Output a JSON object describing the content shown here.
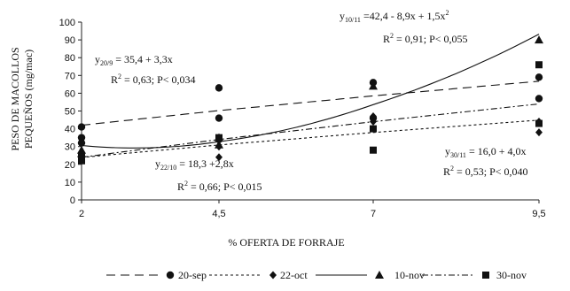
{
  "chart_data": {
    "type": "scatter",
    "xlabel": "% OFERTA DE FORRAJE",
    "ylabel_lines": [
      "PESO DE MACOLLOS",
      "PEQUEÑOS (mg/mac)"
    ],
    "x_ticks": [
      "2",
      "4,5",
      "7",
      "9,5"
    ],
    "x_values": [
      2,
      4.5,
      7,
      9.5
    ],
    "xlim": [
      2,
      9.5
    ],
    "ylim": [
      0,
      100
    ],
    "y_ticks": [
      0,
      10,
      20,
      30,
      40,
      50,
      60,
      70,
      80,
      90,
      100
    ],
    "grid": false,
    "legend_position": "bottom",
    "series": [
      {
        "name": "20-sep",
        "marker": "circle",
        "line_style": "dashed",
        "points": [
          {
            "x": 2,
            "y": 41
          },
          {
            "x": 2,
            "y": 35
          },
          {
            "x": 2,
            "y": 32
          },
          {
            "x": 4.5,
            "y": 63
          },
          {
            "x": 4.5,
            "y": 46
          },
          {
            "x": 4.5,
            "y": 34
          },
          {
            "x": 7,
            "y": 66
          },
          {
            "x": 7,
            "y": 46
          },
          {
            "x": 9.5,
            "y": 69
          },
          {
            "x": 9.5,
            "y": 57
          }
        ],
        "fit": {
          "type": "linear",
          "intercept": 35.4,
          "slope": 3.3
        }
      },
      {
        "name": "22-oct",
        "marker": "diamond",
        "line_style": "dotted",
        "points": [
          {
            "x": 2,
            "y": 26
          },
          {
            "x": 2,
            "y": 24
          },
          {
            "x": 4.5,
            "y": 30
          },
          {
            "x": 4.5,
            "y": 24
          },
          {
            "x": 7,
            "y": 47
          },
          {
            "x": 7,
            "y": 44
          },
          {
            "x": 9.5,
            "y": 44
          },
          {
            "x": 9.5,
            "y": 38
          }
        ],
        "fit": {
          "type": "linear",
          "intercept": 18.3,
          "slope": 2.8
        }
      },
      {
        "name": "10-nov",
        "marker": "triangle",
        "line_style": "solid",
        "points": [
          {
            "x": 2,
            "y": 28
          },
          {
            "x": 2,
            "y": 26
          },
          {
            "x": 4.5,
            "y": 35
          },
          {
            "x": 4.5,
            "y": 31
          },
          {
            "x": 7,
            "y": 64
          },
          {
            "x": 9.5,
            "y": 90
          }
        ],
        "fit": {
          "type": "quadratic",
          "a": 42.4,
          "b": -8.9,
          "c": 1.5
        }
      },
      {
        "name": "30-nov",
        "marker": "square",
        "line_style": "dash-dot",
        "points": [
          {
            "x": 2,
            "y": 24
          },
          {
            "x": 2,
            "y": 22
          },
          {
            "x": 4.5,
            "y": 35
          },
          {
            "x": 7,
            "y": 40
          },
          {
            "x": 7,
            "y": 28
          },
          {
            "x": 9.5,
            "y": 76
          },
          {
            "x": 9.5,
            "y": 43
          }
        ],
        "fit": {
          "type": "linear",
          "intercept": 16.0,
          "slope": 4.0
        }
      }
    ],
    "annotations": [
      {
        "id": "eq-20-9",
        "pre": "y",
        "sub": "20/9",
        "post": " = 35,4  + 3,3x",
        "stats": "R = 0,63; P< 0,034"
      },
      {
        "id": "eq-22-10",
        "pre": "y",
        "sub": "22/10",
        "post": " = 18,3 +2,8x",
        "stats": "R = 0,66; P< 0,015"
      },
      {
        "id": "eq-10-11",
        "pre": "y",
        "sub": "10/11",
        "post": " =42,4 - 8,9x + 1,5x",
        "stats": "R = 0,91; P< 0,055"
      },
      {
        "id": "eq-30-11",
        "pre": "y",
        "sub": "30/11",
        "post": " = 16,0 + 4,0x",
        "stats": "R = 0,53; P< 0,040"
      }
    ]
  }
}
